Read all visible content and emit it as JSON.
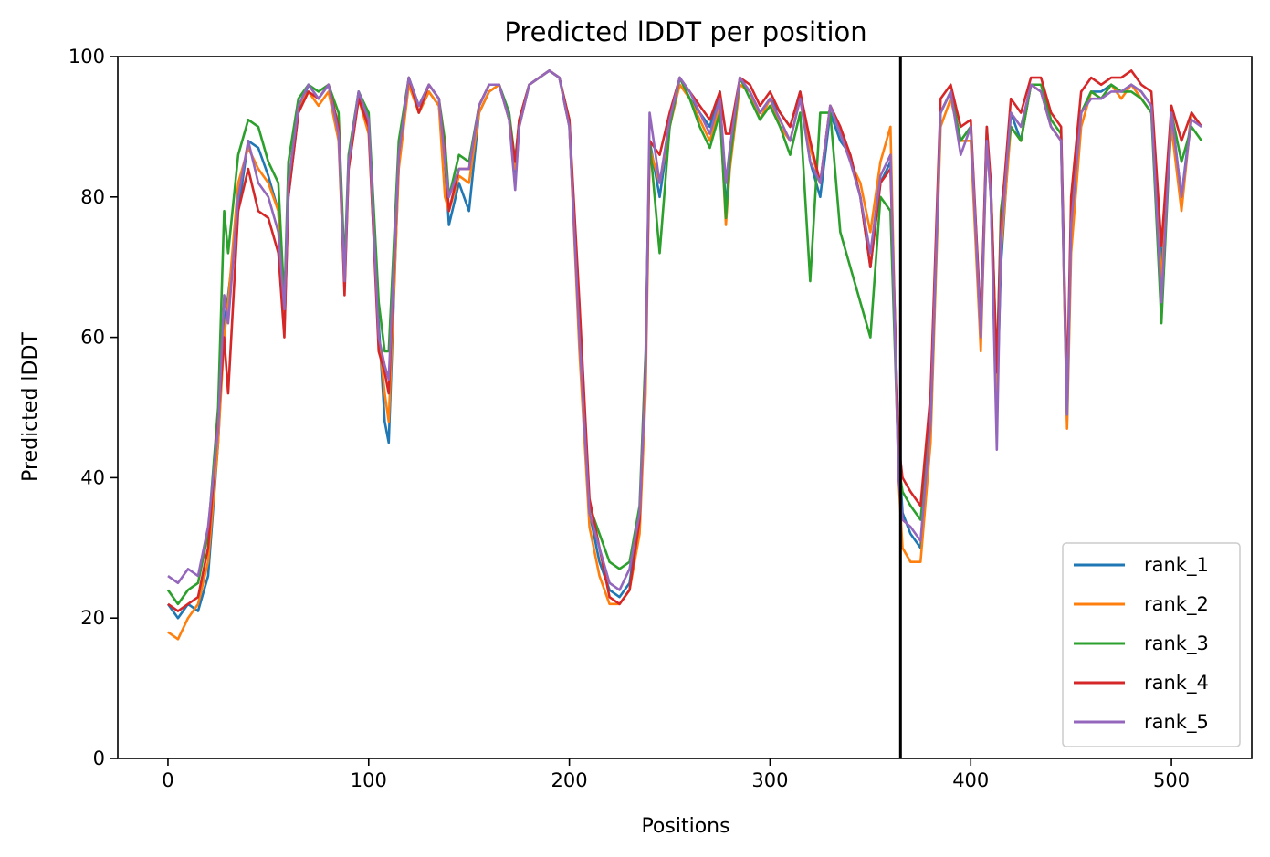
{
  "chart_data": {
    "type": "line",
    "title": "Predicted lDDT per position",
    "xlabel": "Positions",
    "ylabel": "Predicted lDDT",
    "xlim": [
      -25,
      540
    ],
    "ylim": [
      0,
      100
    ],
    "xticks": [
      "0",
      "100",
      "200",
      "300",
      "400",
      "500"
    ],
    "yticks": [
      "0",
      "20",
      "40",
      "60",
      "80",
      "100"
    ],
    "vline_x": 365,
    "legend_position": "lower-right",
    "grid": false,
    "anchors_x": [
      0,
      5,
      10,
      15,
      20,
      25,
      28,
      30,
      35,
      40,
      45,
      50,
      55,
      58,
      60,
      65,
      70,
      75,
      80,
      85,
      88,
      90,
      95,
      100,
      105,
      108,
      110,
      115,
      120,
      125,
      130,
      135,
      138,
      140,
      145,
      150,
      155,
      160,
      165,
      170,
      173,
      175,
      180,
      185,
      190,
      195,
      200,
      205,
      210,
      215,
      220,
      225,
      230,
      235,
      238,
      240,
      245,
      250,
      255,
      260,
      265,
      270,
      275,
      278,
      280,
      285,
      290,
      295,
      300,
      305,
      310,
      315,
      320,
      325,
      330,
      335,
      340,
      345,
      350,
      355,
      360,
      364,
      366,
      370,
      375,
      380,
      385,
      390,
      395,
      400,
      405,
      408,
      410,
      413,
      415,
      420,
      425,
      430,
      435,
      440,
      445,
      448,
      450,
      455,
      460,
      465,
      470,
      475,
      480,
      485,
      490,
      495,
      500,
      505,
      510,
      515
    ],
    "series": [
      {
        "name": "rank_1",
        "color": "#1f77b4",
        "values": [
          22,
          20,
          22,
          21,
          26,
          45,
          62,
          66,
          78,
          88,
          87,
          83,
          78,
          61,
          80,
          92,
          96,
          94,
          96,
          90,
          68,
          85,
          95,
          90,
          62,
          48,
          45,
          85,
          97,
          92,
          95,
          93,
          85,
          76,
          82,
          78,
          92,
          95,
          96,
          92,
          82,
          90,
          96,
          97,
          98,
          97,
          90,
          60,
          35,
          28,
          24,
          23,
          25,
          35,
          55,
          88,
          80,
          90,
          97,
          94,
          92,
          90,
          95,
          78,
          86,
          97,
          95,
          92,
          94,
          92,
          90,
          95,
          85,
          80,
          92,
          88,
          86,
          80,
          70,
          82,
          85,
          45,
          35,
          32,
          30,
          50,
          92,
          95,
          88,
          90,
          60,
          90,
          80,
          50,
          70,
          92,
          88,
          96,
          95,
          90,
          88,
          48,
          75,
          92,
          95,
          95,
          96,
          95,
          96,
          95,
          93,
          70,
          92,
          80,
          92,
          90
        ]
      },
      {
        "name": "rank_2",
        "color": "#ff7f0e",
        "values": [
          18,
          17,
          20,
          22,
          28,
          45,
          60,
          65,
          82,
          87,
          84,
          82,
          78,
          62,
          82,
          93,
          95,
          93,
          95,
          88,
          67,
          84,
          94,
          89,
          60,
          52,
          48,
          84,
          96,
          92,
          95,
          93,
          80,
          78,
          83,
          82,
          92,
          95,
          96,
          91,
          84,
          90,
          96,
          97,
          98,
          97,
          90,
          58,
          33,
          26,
          22,
          22,
          24,
          32,
          52,
          87,
          82,
          90,
          96,
          94,
          91,
          88,
          93,
          76,
          84,
          96,
          95,
          91,
          94,
          90,
          88,
          94,
          87,
          82,
          93,
          90,
          85,
          82,
          75,
          85,
          90,
          40,
          30,
          28,
          28,
          45,
          90,
          94,
          88,
          88,
          58,
          88,
          80,
          52,
          72,
          90,
          88,
          96,
          95,
          90,
          88,
          47,
          72,
          90,
          95,
          94,
          96,
          94,
          96,
          94,
          92,
          68,
          90,
          78,
          92,
          90
        ]
      },
      {
        "name": "rank_3",
        "color": "#2ca02c",
        "values": [
          24,
          22,
          24,
          25,
          32,
          50,
          78,
          72,
          86,
          91,
          90,
          85,
          82,
          65,
          85,
          94,
          96,
          95,
          96,
          92,
          70,
          86,
          95,
          92,
          65,
          58,
          58,
          88,
          97,
          93,
          96,
          94,
          88,
          80,
          86,
          85,
          93,
          96,
          96,
          92,
          85,
          91,
          96,
          97,
          98,
          97,
          91,
          62,
          36,
          32,
          28,
          27,
          28,
          36,
          58,
          88,
          72,
          90,
          97,
          94,
          90,
          87,
          92,
          77,
          85,
          97,
          94,
          91,
          93,
          90,
          86,
          92,
          68,
          92,
          92,
          75,
          70,
          65,
          60,
          80,
          78,
          42,
          38,
          36,
          34,
          48,
          92,
          95,
          88,
          90,
          62,
          88,
          82,
          55,
          78,
          90,
          88,
          96,
          96,
          91,
          89,
          49,
          78,
          92,
          95,
          94,
          96,
          95,
          95,
          94,
          92,
          62,
          92,
          85,
          90,
          88
        ]
      },
      {
        "name": "rank_4",
        "color": "#d62728",
        "values": [
          22,
          21,
          22,
          23,
          30,
          48,
          60,
          52,
          78,
          84,
          78,
          77,
          72,
          60,
          80,
          92,
          95,
          94,
          96,
          90,
          66,
          84,
          94,
          90,
          58,
          55,
          52,
          86,
          97,
          92,
          96,
          94,
          86,
          78,
          84,
          84,
          93,
          96,
          96,
          91,
          85,
          91,
          96,
          97,
          98,
          97,
          91,
          65,
          37,
          30,
          23,
          22,
          24,
          34,
          56,
          88,
          86,
          92,
          97,
          95,
          93,
          91,
          95,
          89,
          89,
          97,
          96,
          93,
          95,
          92,
          90,
          95,
          88,
          82,
          93,
          90,
          86,
          80,
          70,
          82,
          84,
          45,
          40,
          38,
          36,
          52,
          94,
          96,
          90,
          91,
          62,
          90,
          82,
          55,
          76,
          94,
          92,
          97,
          97,
          92,
          90,
          52,
          80,
          95,
          97,
          96,
          97,
          97,
          98,
          96,
          95,
          73,
          93,
          88,
          92,
          90
        ]
      },
      {
        "name": "rank_5",
        "color": "#9467bd",
        "values": [
          26,
          25,
          27,
          26,
          33,
          47,
          66,
          62,
          80,
          88,
          82,
          80,
          75,
          64,
          82,
          93,
          96,
          94,
          96,
          89,
          68,
          85,
          95,
          91,
          60,
          56,
          54,
          86,
          97,
          93,
          96,
          94,
          85,
          80,
          84,
          84,
          93,
          96,
          96,
          91,
          81,
          90,
          96,
          97,
          98,
          97,
          90,
          60,
          35,
          30,
          25,
          24,
          27,
          35,
          55,
          92,
          82,
          91,
          97,
          95,
          92,
          89,
          94,
          82,
          87,
          97,
          95,
          92,
          94,
          91,
          88,
          94,
          85,
          82,
          93,
          89,
          85,
          80,
          72,
          83,
          86,
          40,
          34,
          33,
          31,
          48,
          92,
          95,
          86,
          90,
          60,
          88,
          80,
          44,
          74,
          92,
          90,
          96,
          95,
          90,
          88,
          49,
          76,
          92,
          94,
          94,
          95,
          95,
          96,
          95,
          93,
          65,
          92,
          80,
          91,
          90
        ]
      }
    ]
  }
}
